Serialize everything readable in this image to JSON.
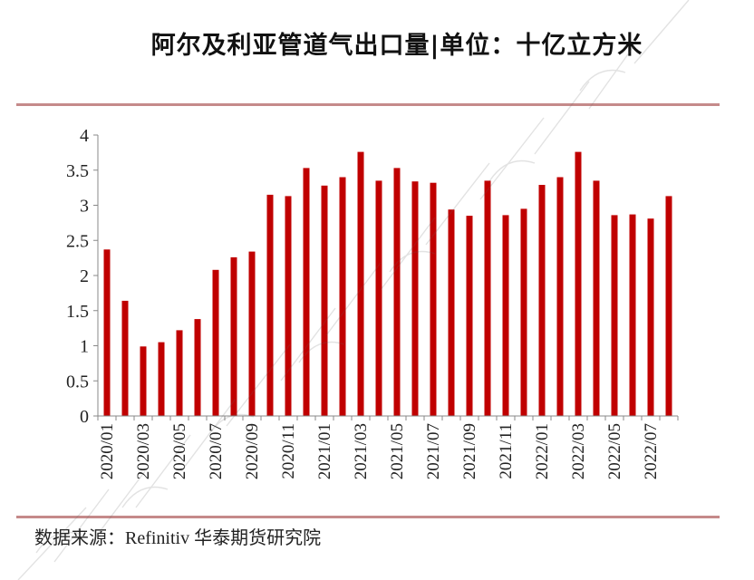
{
  "header": {
    "title": "阿尔及利亚管道气出口量|单位：十亿立方米"
  },
  "footer": {
    "source": "数据来源：Refinitiv 华泰期货研究院"
  },
  "colors": {
    "bar": "#c00000",
    "rule": "#c58a8a",
    "axis": "#888888"
  },
  "chart_data": {
    "type": "bar",
    "title": "阿尔及利亚管道气出口量|单位：十亿立方米",
    "categories": [
      "2020/01",
      "2020/02",
      "2020/03",
      "2020/04",
      "2020/05",
      "2020/06",
      "2020/07",
      "2020/08",
      "2020/09",
      "2020/10",
      "2020/11",
      "2020/12",
      "2021/01",
      "2021/02",
      "2021/03",
      "2021/04",
      "2021/05",
      "2021/06",
      "2021/07",
      "2021/08",
      "2021/09",
      "2021/10",
      "2021/11",
      "2021/12",
      "2022/01",
      "2022/02",
      "2022/03",
      "2022/04",
      "2022/05",
      "2022/06",
      "2022/07",
      "2022/08"
    ],
    "tick_labels": [
      "2020/01",
      "2020/03",
      "2020/05",
      "2020/07",
      "2020/09",
      "2020/11",
      "2021/01",
      "2021/03",
      "2021/05",
      "2021/07",
      "2021/09",
      "2021/11",
      "2022/01",
      "2022/03",
      "2022/05",
      "2022/07"
    ],
    "values": [
      2.37,
      1.64,
      0.99,
      1.05,
      1.22,
      1.38,
      2.08,
      2.26,
      2.34,
      3.15,
      3.13,
      3.53,
      3.28,
      3.4,
      3.76,
      3.35,
      3.53,
      3.34,
      3.32,
      2.94,
      2.85,
      3.35,
      2.86,
      2.95,
      3.29,
      3.4,
      3.76,
      3.35,
      2.86,
      2.87,
      2.81,
      3.13
    ],
    "yticks": [
      "0",
      "0.5",
      "1",
      "1.5",
      "2",
      "2.5",
      "3",
      "3.5",
      "4"
    ],
    "ylim": [
      0,
      4
    ],
    "xlabel": "",
    "ylabel": "",
    "grid": false,
    "legend": "none"
  }
}
